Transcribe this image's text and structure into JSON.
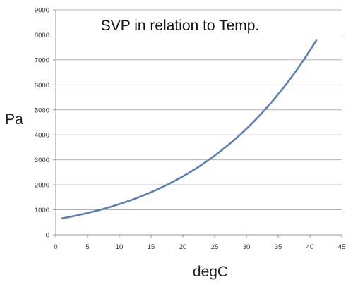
{
  "chart_data": {
    "type": "line",
    "title": "SVP in relation to Temp.",
    "xlabel": "degC",
    "ylabel": "Pa",
    "xlim": [
      0,
      45
    ],
    "ylim": [
      0,
      9000
    ],
    "x_ticks": [
      0,
      5,
      10,
      15,
      20,
      25,
      30,
      35,
      40,
      45
    ],
    "y_ticks": [
      0,
      1000,
      2000,
      3000,
      4000,
      5000,
      6000,
      7000,
      8000,
      9000
    ],
    "grid": "horizontal",
    "legend": "none",
    "series": [
      {
        "color": "#5b7fb5",
        "x": [
          1,
          3,
          5,
          7,
          9,
          11,
          13,
          15,
          17,
          19,
          21,
          23,
          25,
          27,
          29,
          31,
          33,
          35,
          37,
          39,
          41
        ],
        "y": [
          657,
          758,
          872,
          1002,
          1148,
          1312,
          1498,
          1705,
          1937,
          2197,
          2487,
          2809,
          3167,
          3564,
          4005,
          4492,
          5029,
          5623,
          6275,
          6992,
          7778
        ]
      }
    ]
  }
}
